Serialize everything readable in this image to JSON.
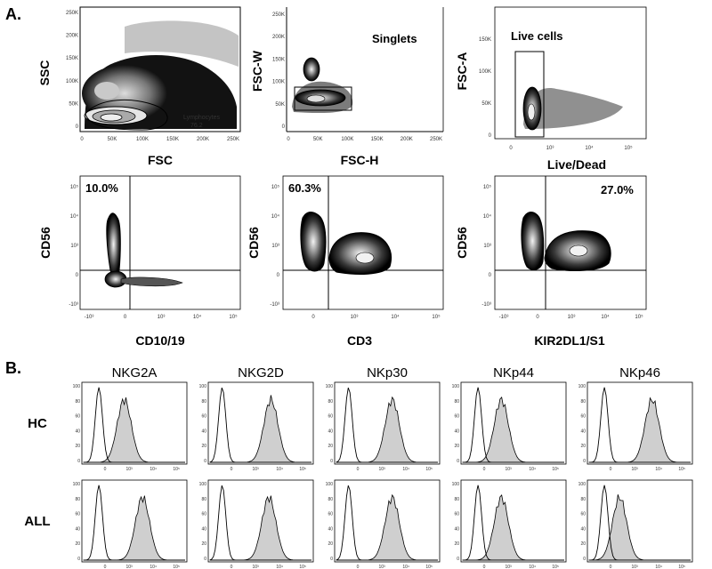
{
  "section_a": {
    "label": "A."
  },
  "section_b": {
    "label": "B."
  },
  "chart_data": [
    {
      "id": "fsc-ssc",
      "type": "scatter",
      "xlabel": "FSC",
      "ylabel": "SSC",
      "xlim": [
        0,
        262144
      ],
      "ylim": [
        0,
        262144
      ],
      "xticks": [
        "0",
        "50K",
        "100K",
        "150K",
        "200K",
        "250K"
      ],
      "yticks": [
        "0",
        "50K",
        "100K",
        "150K",
        "200K",
        "250K"
      ],
      "gate": {
        "name": "Lymphocytes",
        "value": "76.2"
      },
      "populations": [
        {
          "x": 90000,
          "y": 60000
        }
      ]
    },
    {
      "id": "fsch-fscw",
      "type": "scatter",
      "xlabel": "FSC-H",
      "ylabel": "FSC-W",
      "xlim": [
        0,
        262144
      ],
      "ylim": [
        0,
        262144
      ],
      "xticks": [
        "0",
        "50K",
        "100K",
        "150K",
        "200K",
        "250K"
      ],
      "yticks": [
        "0",
        "50K",
        "100K",
        "150K",
        "200K",
        "250K"
      ],
      "gate": {
        "name": "Singlets",
        "x": [
          10000,
          115000
        ],
        "y": [
          45000,
          95000
        ]
      },
      "populations": [
        {
          "x": 60000,
          "y": 75000
        },
        {
          "x": 35000,
          "y": 135000
        }
      ]
    },
    {
      "id": "live-dead",
      "type": "scatter",
      "xlabel": "Live/Dead",
      "ylabel": "FSC-A",
      "xticks": [
        "0",
        "10³",
        "10⁴",
        "10⁵"
      ],
      "yticks": [
        "0",
        "50K",
        "100K",
        "150K"
      ],
      "gate": {
        "name": "Live cells"
      }
    },
    {
      "id": "cd10-cd56",
      "type": "scatter",
      "xlabel": "CD10/19",
      "ylabel": "CD56",
      "xticks": [
        "-10³",
        "0",
        "10³",
        "10⁴",
        "10⁵"
      ],
      "yticks": [
        "-10³",
        "0",
        "10³",
        "10⁴",
        "10⁵"
      ],
      "quadrant_label": "10.0%"
    },
    {
      "id": "cd3-cd56",
      "type": "scatter",
      "xlabel": "CD3",
      "ylabel": "CD56",
      "xticks": [
        "0",
        "10³",
        "10⁴",
        "10⁵"
      ],
      "yticks": [
        "-10³",
        "0",
        "10³",
        "10⁴",
        "10⁵"
      ],
      "quadrant_label": "60.3%"
    },
    {
      "id": "kir-cd56",
      "type": "scatter",
      "xlabel": "KIR2DL1/S1",
      "ylabel": "CD56",
      "xticks": [
        "-10³",
        "0",
        "10³",
        "10⁴",
        "10⁵"
      ],
      "yticks": [
        "-10³",
        "0",
        "10³",
        "10⁴",
        "10⁵"
      ],
      "quadrant_label": "27.0%"
    },
    {
      "id": "histograms",
      "type": "area",
      "rows": [
        "HC",
        "ALL"
      ],
      "columns": [
        "NKG2A",
        "NKG2D",
        "NKp30",
        "NKp44",
        "NKp46"
      ],
      "yticks": [
        "0",
        "20",
        "40",
        "60",
        "80",
        "100"
      ],
      "ylim": [
        0,
        100
      ],
      "xticks": [
        "0",
        "10³",
        "10⁴",
        "10⁵"
      ],
      "isotype_peak": [
        0.15,
        0.12,
        0.12,
        0.15,
        0.15
      ],
      "stained_peak": {
        "HC": [
          0.4,
          0.6,
          0.55,
          0.38,
          0.62
        ],
        "ALL": [
          0.58,
          0.58,
          0.55,
          0.38,
          0.3
        ]
      }
    }
  ]
}
